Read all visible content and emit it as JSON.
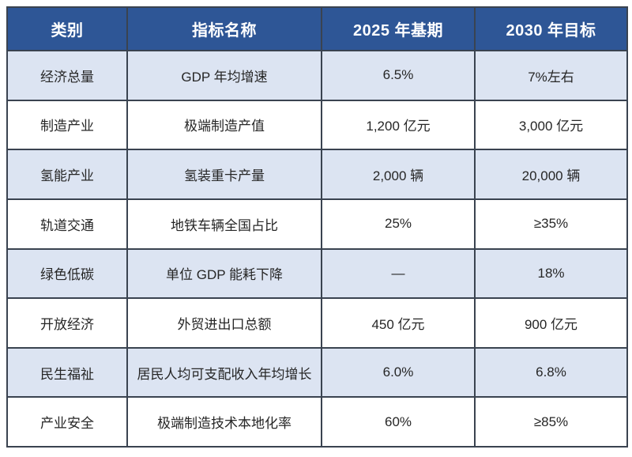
{
  "chart_data": {
    "type": "table",
    "title": "",
    "columns": [
      "类别",
      "指标名称",
      "2025 年基期",
      "2030 年目标"
    ],
    "rows": [
      [
        "经济总量",
        "GDP 年均增速",
        "6.5%",
        "7%左右"
      ],
      [
        "制造产业",
        "极端制造产值",
        "1,200 亿元",
        "3,000 亿元"
      ],
      [
        "氢能产业",
        "氢装重卡产量",
        "2,000 辆",
        "20,000 辆"
      ],
      [
        "轨道交通",
        "地铁车辆全国占比",
        "25%",
        "≥35%"
      ],
      [
        "绿色低碳",
        "单位 GDP 能耗下降",
        "—",
        "18%"
      ],
      [
        "开放经济",
        "外贸进出口总额",
        "450 亿元",
        "900 亿元"
      ],
      [
        "民生福祉",
        "居民人均可支配收入年均增长",
        "6.0%",
        "6.8%"
      ],
      [
        "产业安全",
        "极端制造技术本地化率",
        "60%",
        "≥85%"
      ]
    ]
  },
  "table": {
    "headers": {
      "category": "类别",
      "indicator": "指标名称",
      "baseline": "2025 年基期",
      "target": "2030 年目标"
    },
    "rows": [
      {
        "category": "经济总量",
        "indicator": "GDP 年均增速",
        "baseline_2025": "6.5%",
        "target_2030": "7%左右"
      },
      {
        "category": "制造产业",
        "indicator": "极端制造产值",
        "baseline_2025": "1,200 亿元",
        "target_2030": "3,000 亿元"
      },
      {
        "category": "氢能产业",
        "indicator": "氢装重卡产量",
        "baseline_2025": "2,000 辆",
        "target_2030": "20,000 辆"
      },
      {
        "category": "轨道交通",
        "indicator": "地铁车辆全国占比",
        "baseline_2025": "25%",
        "target_2030": "≥35%"
      },
      {
        "category": "绿色低碳",
        "indicator": "单位 GDP 能耗下降",
        "baseline_2025": "—",
        "target_2030": "18%"
      },
      {
        "category": "开放经济",
        "indicator": "外贸进出口总额",
        "baseline_2025": "450 亿元",
        "target_2030": "900 亿元"
      },
      {
        "category": "民生福祉",
        "indicator": "居民人均可支配收入年均增长",
        "baseline_2025": "6.0%",
        "target_2030": "6.8%"
      },
      {
        "category": "产业安全",
        "indicator": "极端制造技术本地化率",
        "baseline_2025": "60%",
        "target_2030": "≥85%"
      }
    ]
  },
  "colors": {
    "header_bg": "#2E5696",
    "header_text": "#FFFFFF",
    "row_alt_bg": "#DCE4F2",
    "row_bg": "#FFFFFF",
    "border": "#3A4350",
    "body_text": "#262626"
  }
}
